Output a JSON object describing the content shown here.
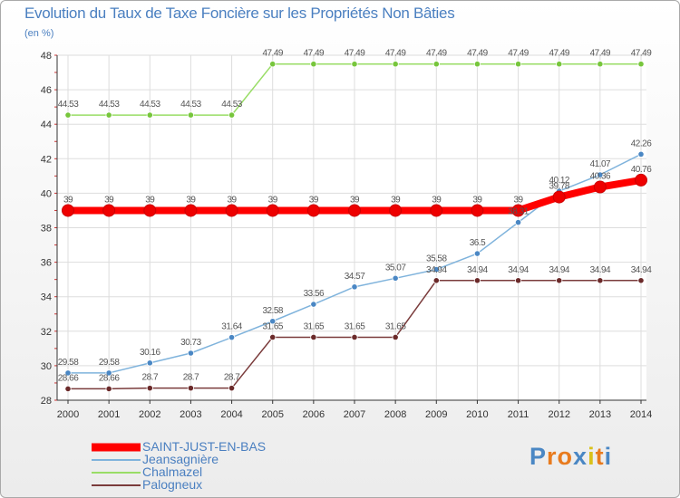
{
  "title": "Evolution du Taux de Taxe Foncière sur les Propriétés Non Bâties",
  "subtitle": "(en %)",
  "colors": {
    "title": "#4a7fc0",
    "grid": "#dddddd",
    "axis": "#333333"
  },
  "chart_data": {
    "type": "line",
    "title": "Evolution du Taux de Taxe Foncière sur les Propriétés Non Bâties",
    "ylabel": "(en %)",
    "xlabel": "",
    "x": [
      "2000",
      "2001",
      "2002",
      "2003",
      "2004",
      "2005",
      "2006",
      "2007",
      "2008",
      "2009",
      "2010",
      "2011",
      "2012",
      "2013",
      "2014"
    ],
    "ylim": [
      28,
      48
    ],
    "yticks": [
      28,
      30,
      32,
      34,
      36,
      38,
      40,
      42,
      44,
      46,
      48
    ],
    "grid": true,
    "legend_position": "bottom-left",
    "series": [
      {
        "name": "SAINT-JUST-EN-BAS",
        "color": "#ff0000",
        "marker_color": "#ee0000",
        "thick": true,
        "values": [
          39,
          39,
          39,
          39,
          39,
          39,
          39,
          39,
          39,
          39,
          39,
          39,
          39.78,
          40.36,
          40.76
        ],
        "labels": [
          "39",
          "39",
          "39",
          "39",
          "39",
          "39",
          "39",
          "39",
          "39",
          "39",
          "39",
          "39",
          "39.78",
          "40.36",
          "40.76"
        ]
      },
      {
        "name": "Jeansagnière",
        "color": "#7fb3dc",
        "marker_color": "#4a87c4",
        "thick": false,
        "values": [
          29.58,
          29.58,
          30.16,
          30.73,
          31.64,
          32.58,
          33.56,
          34.57,
          35.07,
          35.58,
          36.5,
          38.31,
          40.12,
          41.07,
          42.26
        ],
        "labels": [
          "29.58",
          "29.58",
          "30.16",
          "30.73",
          "31.64",
          "32.58",
          "33.56",
          "34.57",
          "35.07",
          "35.58",
          "36.5",
          "38.31",
          "40.12",
          "41.07",
          "42.26"
        ]
      },
      {
        "name": "Chalmazel",
        "color": "#99dd66",
        "marker_color": "#77c63c",
        "thick": false,
        "values": [
          44.53,
          44.53,
          44.53,
          44.53,
          44.53,
          47.49,
          47.49,
          47.49,
          47.49,
          47.49,
          47.49,
          47.49,
          47.49,
          47.49,
          47.49
        ],
        "labels": [
          "44.53",
          "44.53",
          "44.53",
          "44.53",
          "44.53",
          "47.49",
          "47.49",
          "47.49",
          "47.49",
          "47.49",
          "47.49",
          "47.49",
          "47.49",
          "47.49",
          "47.49"
        ]
      },
      {
        "name": "Palogneux",
        "color": "#7a3b3b",
        "marker_color": "#6b2a2a",
        "thick": false,
        "values": [
          28.66,
          28.66,
          28.7,
          28.7,
          28.7,
          31.65,
          31.65,
          31.65,
          31.65,
          34.94,
          34.94,
          34.94,
          34.94,
          34.94,
          34.94
        ],
        "labels": [
          "28.66",
          "28.66",
          "28.7",
          "28.7",
          "28.7",
          "31.65",
          "31.65",
          "31.65",
          "31.65",
          "34.94",
          "34.94",
          "34.94",
          "34.94",
          "34.94",
          "34.94"
        ]
      }
    ]
  },
  "legend": [
    {
      "label": "SAINT-JUST-EN-BAS",
      "color": "#ff0000",
      "thick": true
    },
    {
      "label": "Jeansagnière",
      "color": "#7fb3dc",
      "thick": false
    },
    {
      "label": "Chalmazel",
      "color": "#99dd66",
      "thick": false
    },
    {
      "label": "Palogneux",
      "color": "#7a3b3b",
      "thick": false
    }
  ],
  "logo": {
    "text": "Proxiti",
    "letter_colors": [
      "#4a87c4",
      "#e87b1e",
      "#e87b1e",
      "#4a87c4",
      "#d9c11a",
      "#e87b1e",
      "#4a87c4"
    ]
  }
}
